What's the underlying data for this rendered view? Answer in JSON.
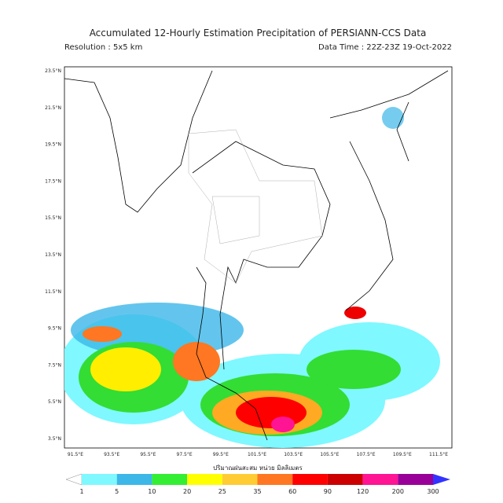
{
  "header": {
    "title": "Accumulated 12-Hourly Estimation Precipitation of PERSIANN-CCS Data",
    "resolution": "Resolution : 5x5 km",
    "data_time": "Data Time : 22Z-23Z 19-Oct-2022"
  },
  "map": {
    "lat_labels": [
      "23.5°N",
      "21.5°N",
      "19.5°N",
      "17.5°N",
      "15.5°N",
      "13.5°N",
      "11.5°N",
      "9.5°N",
      "7.5°N",
      "5.5°N",
      "3.5°N"
    ],
    "lon_labels": [
      "91.5°E",
      "93.5°E",
      "95.5°E",
      "97.5°E",
      "99.5°E",
      "101.5°E",
      "103.5°E",
      "105.5°E",
      "107.5°E",
      "109.5°E",
      "111.5°E"
    ]
  },
  "legend": {
    "title": "ปริมาณฝนสะสม หน่วย มิลลิเมตร",
    "labels": [
      "1",
      "5",
      "10",
      "20",
      "25",
      "35",
      "60",
      "90",
      "120",
      "200",
      "300"
    ]
  }
}
